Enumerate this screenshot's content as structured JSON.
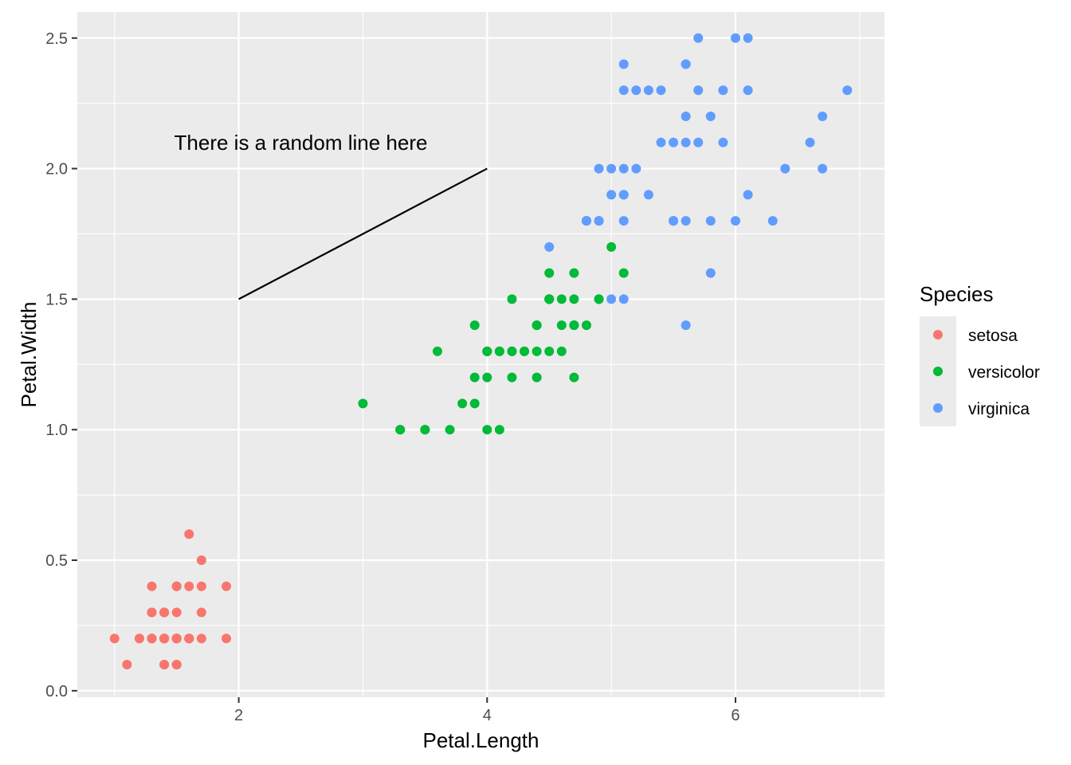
{
  "chart_data": {
    "type": "scatter",
    "xlabel": "Petal.Length",
    "ylabel": "Petal.Width",
    "xlim": [
      0.7,
      7.2
    ],
    "ylim": [
      -0.025,
      2.6
    ],
    "x_ticks": [
      2,
      4,
      6
    ],
    "x_tick_labels": [
      "2",
      "4",
      "6"
    ],
    "y_ticks": [
      0.0,
      0.5,
      1.0,
      1.5,
      2.0,
      2.5
    ],
    "y_tick_labels": [
      "0.0",
      "0.5",
      "1.0",
      "1.5",
      "2.0",
      "2.5"
    ],
    "grid": true,
    "legend": {
      "title": "Species",
      "placement": "right"
    },
    "series": [
      {
        "name": "setosa",
        "color": "#F8766D",
        "points": [
          [
            1.4,
            0.2
          ],
          [
            1.4,
            0.2
          ],
          [
            1.3,
            0.2
          ],
          [
            1.5,
            0.2
          ],
          [
            1.4,
            0.2
          ],
          [
            1.7,
            0.4
          ],
          [
            1.4,
            0.3
          ],
          [
            1.5,
            0.2
          ],
          [
            1.4,
            0.2
          ],
          [
            1.5,
            0.1
          ],
          [
            1.5,
            0.2
          ],
          [
            1.6,
            0.2
          ],
          [
            1.4,
            0.1
          ],
          [
            1.1,
            0.1
          ],
          [
            1.2,
            0.2
          ],
          [
            1.5,
            0.4
          ],
          [
            1.3,
            0.4
          ],
          [
            1.4,
            0.3
          ],
          [
            1.7,
            0.3
          ],
          [
            1.5,
            0.3
          ],
          [
            1.7,
            0.2
          ],
          [
            1.5,
            0.4
          ],
          [
            1.0,
            0.2
          ],
          [
            1.7,
            0.5
          ],
          [
            1.9,
            0.2
          ],
          [
            1.6,
            0.2
          ],
          [
            1.6,
            0.4
          ],
          [
            1.5,
            0.2
          ],
          [
            1.4,
            0.2
          ],
          [
            1.6,
            0.2
          ],
          [
            1.6,
            0.2
          ],
          [
            1.5,
            0.4
          ],
          [
            1.5,
            0.1
          ],
          [
            1.4,
            0.2
          ],
          [
            1.5,
            0.2
          ],
          [
            1.2,
            0.2
          ],
          [
            1.3,
            0.2
          ],
          [
            1.4,
            0.1
          ],
          [
            1.3,
            0.2
          ],
          [
            1.5,
            0.2
          ],
          [
            1.3,
            0.3
          ],
          [
            1.3,
            0.3
          ],
          [
            1.3,
            0.2
          ],
          [
            1.6,
            0.6
          ],
          [
            1.9,
            0.4
          ],
          [
            1.4,
            0.3
          ],
          [
            1.6,
            0.2
          ],
          [
            1.4,
            0.2
          ],
          [
            1.5,
            0.2
          ],
          [
            1.4,
            0.2
          ]
        ]
      },
      {
        "name": "versicolor",
        "color": "#00BA38",
        "points": [
          [
            4.7,
            1.4
          ],
          [
            4.5,
            1.5
          ],
          [
            4.9,
            1.5
          ],
          [
            4.0,
            1.3
          ],
          [
            4.6,
            1.5
          ],
          [
            4.5,
            1.3
          ],
          [
            4.7,
            1.6
          ],
          [
            3.3,
            1.0
          ],
          [
            4.6,
            1.3
          ],
          [
            3.9,
            1.4
          ],
          [
            3.5,
            1.0
          ],
          [
            4.2,
            1.5
          ],
          [
            4.0,
            1.0
          ],
          [
            4.7,
            1.4
          ],
          [
            3.6,
            1.3
          ],
          [
            4.4,
            1.4
          ],
          [
            4.5,
            1.5
          ],
          [
            4.1,
            1.0
          ],
          [
            4.5,
            1.5
          ],
          [
            3.9,
            1.1
          ],
          [
            4.8,
            1.8
          ],
          [
            4.0,
            1.3
          ],
          [
            4.9,
            1.5
          ],
          [
            4.7,
            1.2
          ],
          [
            4.3,
            1.3
          ],
          [
            4.4,
            1.4
          ],
          [
            4.8,
            1.4
          ],
          [
            5.0,
            1.7
          ],
          [
            4.5,
            1.5
          ],
          [
            3.5,
            1.0
          ],
          [
            3.8,
            1.1
          ],
          [
            3.7,
            1.0
          ],
          [
            3.9,
            1.2
          ],
          [
            5.1,
            1.6
          ],
          [
            4.5,
            1.5
          ],
          [
            4.5,
            1.6
          ],
          [
            4.7,
            1.5
          ],
          [
            4.4,
            1.3
          ],
          [
            4.1,
            1.3
          ],
          [
            4.0,
            1.3
          ],
          [
            4.4,
            1.2
          ],
          [
            4.6,
            1.4
          ],
          [
            4.0,
            1.2
          ],
          [
            3.3,
            1.0
          ],
          [
            4.2,
            1.3
          ],
          [
            4.2,
            1.2
          ],
          [
            4.2,
            1.3
          ],
          [
            4.3,
            1.3
          ],
          [
            3.0,
            1.1
          ],
          [
            4.1,
            1.3
          ]
        ]
      },
      {
        "name": "virginica",
        "color": "#619CFF",
        "points": [
          [
            6.0,
            2.5
          ],
          [
            5.1,
            1.9
          ],
          [
            5.9,
            2.1
          ],
          [
            5.6,
            1.8
          ],
          [
            5.8,
            2.2
          ],
          [
            6.6,
            2.1
          ],
          [
            4.5,
            1.7
          ],
          [
            6.3,
            1.8
          ],
          [
            5.8,
            1.8
          ],
          [
            6.1,
            2.5
          ],
          [
            5.1,
            2.0
          ],
          [
            5.3,
            1.9
          ],
          [
            5.5,
            2.1
          ],
          [
            5.0,
            2.0
          ],
          [
            5.1,
            2.4
          ],
          [
            5.3,
            2.3
          ],
          [
            5.5,
            1.8
          ],
          [
            6.7,
            2.2
          ],
          [
            6.9,
            2.3
          ],
          [
            5.0,
            1.5
          ],
          [
            5.7,
            2.3
          ],
          [
            4.9,
            2.0
          ],
          [
            6.7,
            2.0
          ],
          [
            4.9,
            1.8
          ],
          [
            5.7,
            2.1
          ],
          [
            6.0,
            1.8
          ],
          [
            4.8,
            1.8
          ],
          [
            4.9,
            1.8
          ],
          [
            5.6,
            2.1
          ],
          [
            5.8,
            1.6
          ],
          [
            6.1,
            1.9
          ],
          [
            6.4,
            2.0
          ],
          [
            5.6,
            2.2
          ],
          [
            5.1,
            1.5
          ],
          [
            5.6,
            1.4
          ],
          [
            6.1,
            2.3
          ],
          [
            5.6,
            2.4
          ],
          [
            5.5,
            1.8
          ],
          [
            4.8,
            1.8
          ],
          [
            5.4,
            2.1
          ],
          [
            5.6,
            2.4
          ],
          [
            5.1,
            2.3
          ],
          [
            5.1,
            1.9
          ],
          [
            5.9,
            2.3
          ],
          [
            5.7,
            2.5
          ],
          [
            5.2,
            2.3
          ],
          [
            5.0,
            1.9
          ],
          [
            5.2,
            2.0
          ],
          [
            5.4,
            2.3
          ],
          [
            5.1,
            1.8
          ]
        ]
      }
    ],
    "annotations": {
      "segment": {
        "x": 2,
        "y": 1.5,
        "xend": 4,
        "yend": 2
      },
      "text": {
        "label": "There is a random line here",
        "x": 2.5,
        "y": 2.1
      }
    },
    "colors": {
      "panel_background": "#EBEBEB",
      "grid_major": "#FFFFFF",
      "grid_minor": "#F5F5F5"
    }
  }
}
